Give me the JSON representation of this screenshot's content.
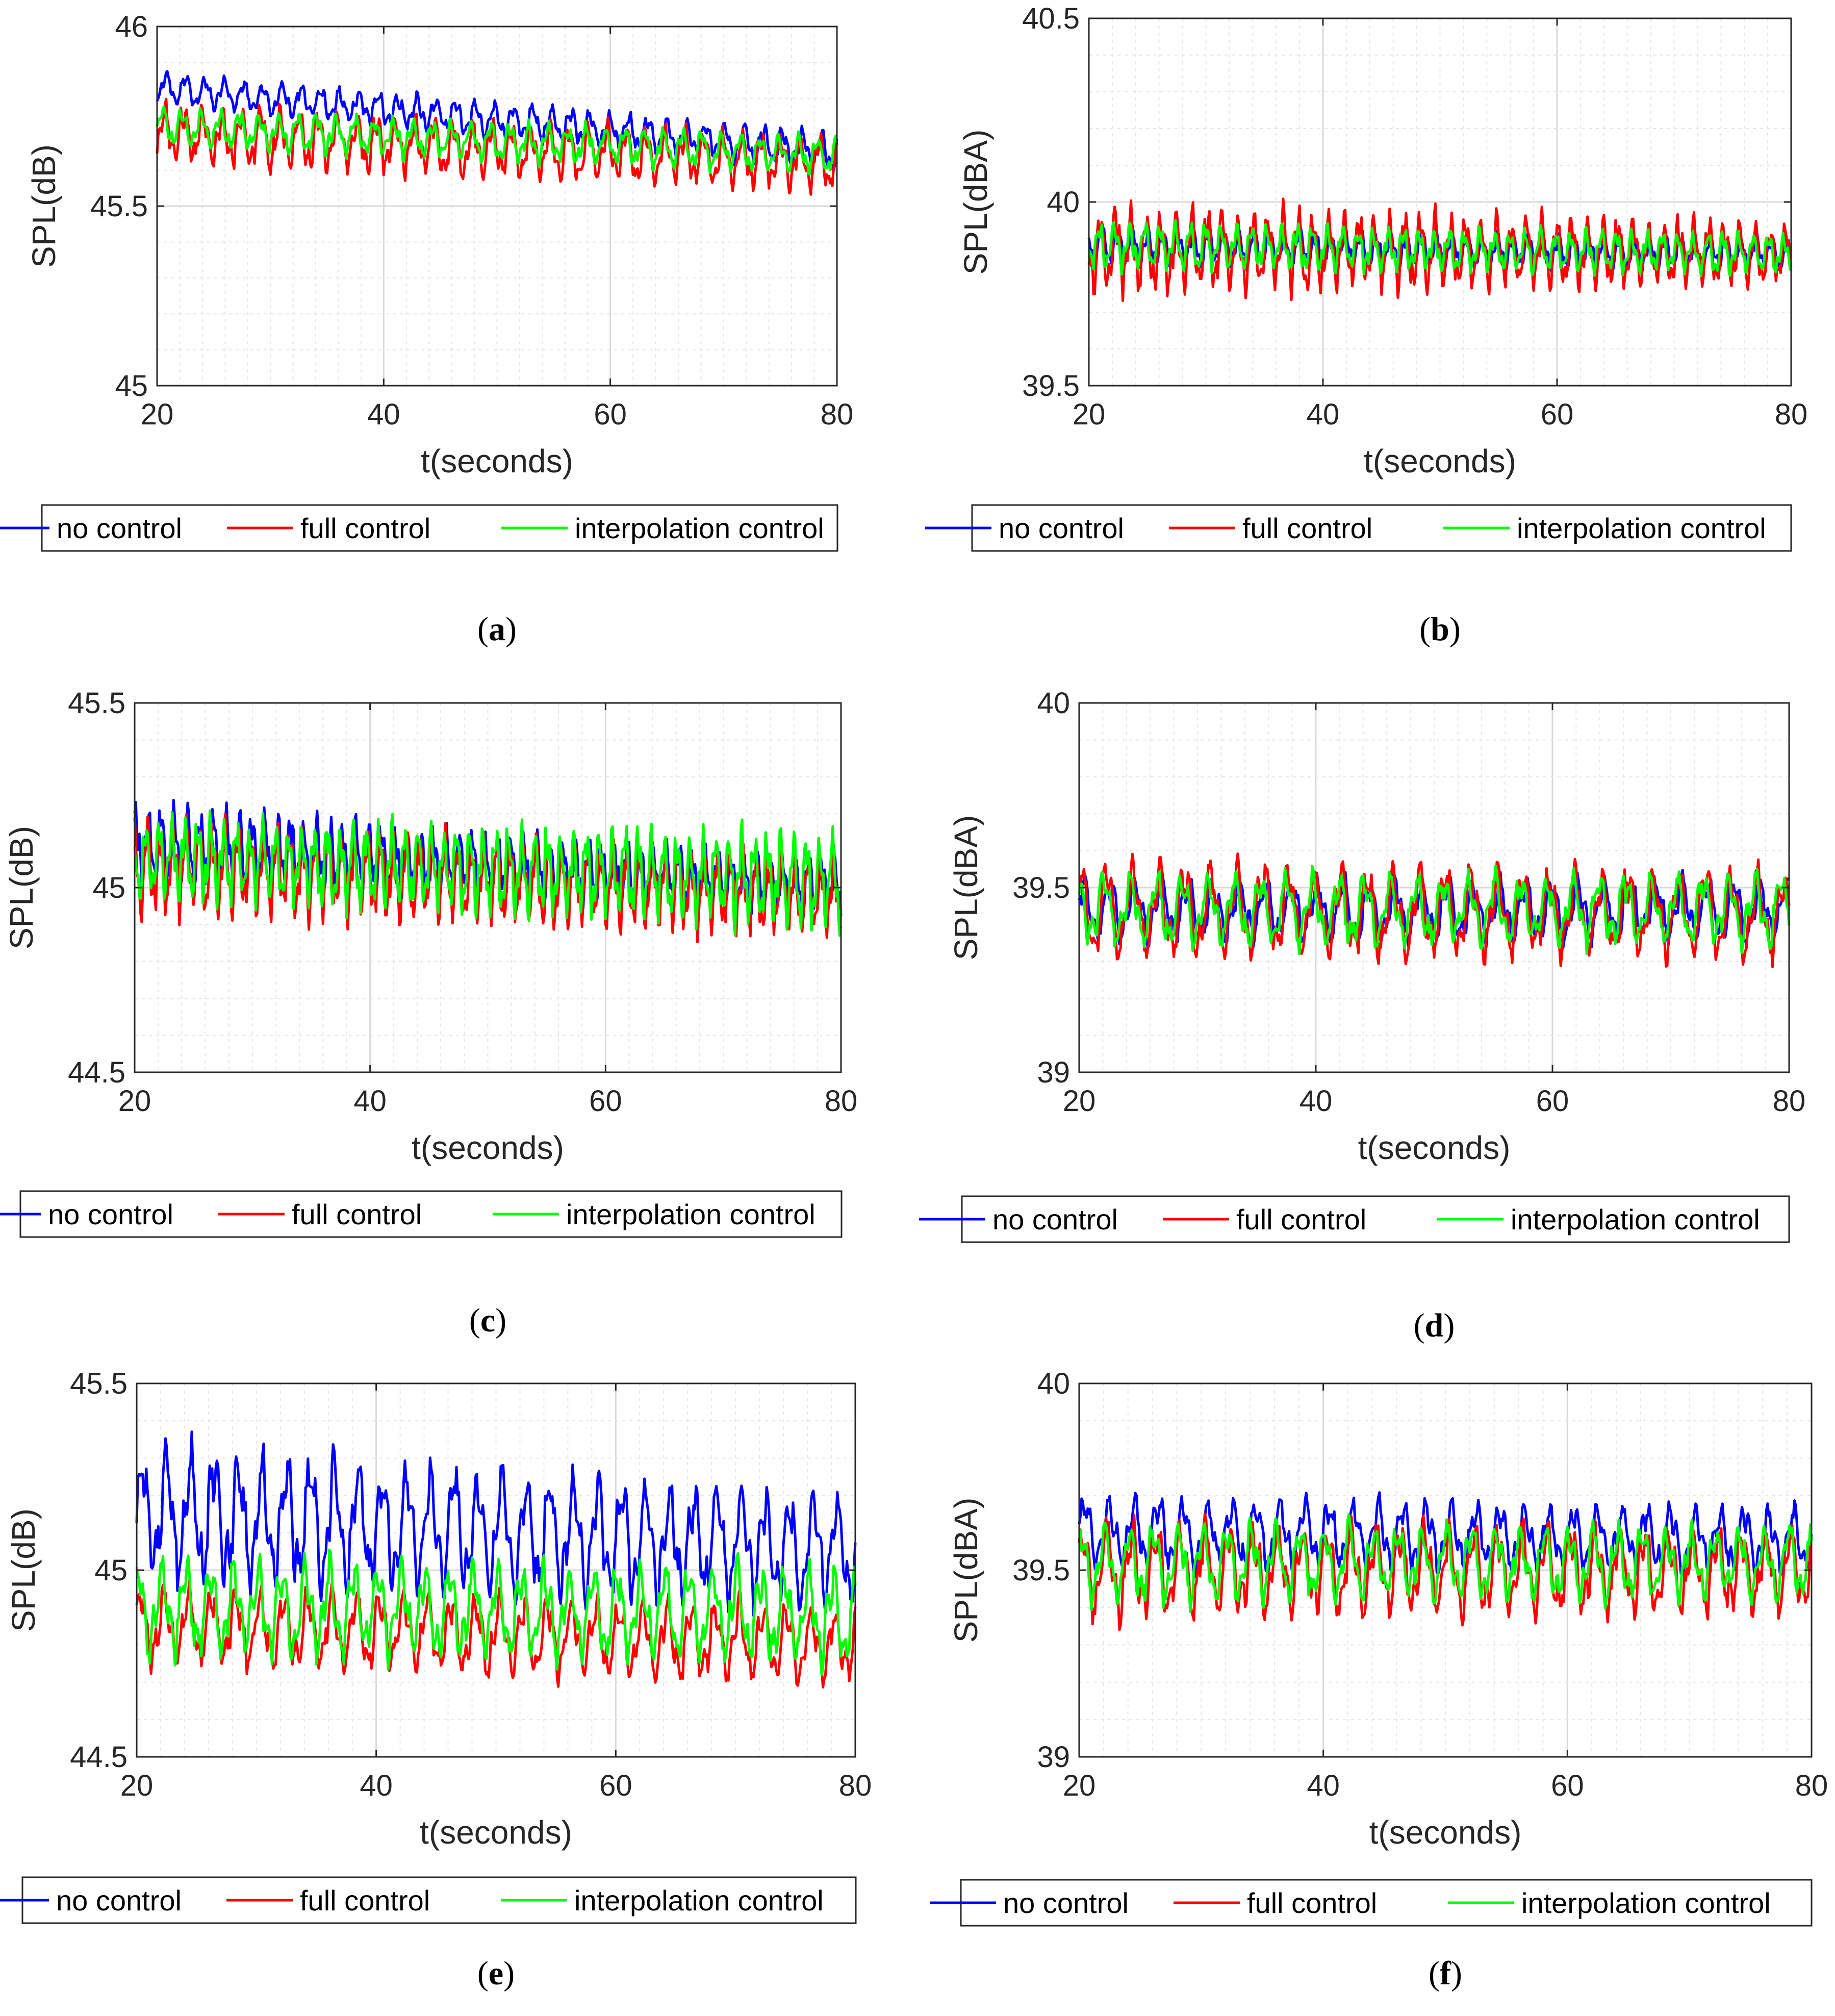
{
  "colors": {
    "no_control": "#0000ff",
    "full_control": "#ff0000",
    "interpolation_control": "#00ff00"
  },
  "legend_labels": [
    "no control",
    "full control",
    "interpolation control"
  ],
  "chart_data": [
    {
      "panel": "a",
      "caption_letter": "a",
      "type": "line",
      "xlabel": "t(seconds)",
      "ylabel": "SPL(dB)",
      "xlim": [
        20,
        80
      ],
      "ylim": [
        45,
        46
      ],
      "xticks": [
        "20",
        "40",
        "60",
        "80"
      ],
      "yticks": [
        "45",
        "45.5",
        "46"
      ],
      "grid": true,
      "legend_position": "below",
      "series": [
        {
          "name": "no control",
          "mean": [
            45.83,
            45.65
          ],
          "amplitude": [
            0.04,
            0.05
          ],
          "period": 1.7
        },
        {
          "name": "full control",
          "mean": [
            45.7,
            45.62
          ],
          "amplitude": [
            0.08,
            0.07
          ],
          "period": 1.7
        },
        {
          "name": "interpolation control",
          "mean": [
            45.72,
            45.64
          ],
          "amplitude": [
            0.05,
            0.05
          ],
          "period": 1.7
        }
      ]
    },
    {
      "panel": "b",
      "caption_letter": "b",
      "type": "line",
      "xlabel": "t(seconds)",
      "ylabel": "SPL(dBA)",
      "xlim": [
        20,
        80
      ],
      "ylim": [
        39.5,
        40.5
      ],
      "xticks": [
        "20",
        "40",
        "60",
        "80"
      ],
      "yticks": [
        "39.5",
        "40",
        "40.5"
      ],
      "grid": true,
      "legend_position": "below",
      "series": [
        {
          "name": "no control",
          "mean": [
            39.88,
            39.86
          ],
          "amplitude": [
            0.05,
            0.04
          ],
          "period": 1.3
        },
        {
          "name": "full control",
          "mean": [
            39.87,
            39.86
          ],
          "amplitude": [
            0.11,
            0.08
          ],
          "period": 1.3
        },
        {
          "name": "interpolation control",
          "mean": [
            39.88,
            39.86
          ],
          "amplitude": [
            0.06,
            0.05
          ],
          "period": 1.3
        }
      ]
    },
    {
      "panel": "c",
      "caption_letter": "c",
      "type": "line",
      "xlabel": "t(seconds)",
      "ylabel": "SPL(dB)",
      "xlim": [
        20,
        80
      ],
      "ylim": [
        44.5,
        45.5
      ],
      "xticks": [
        "20",
        "40",
        "60",
        "80"
      ],
      "yticks": [
        "44.5",
        "45",
        "45.5"
      ],
      "grid": true,
      "legend_position": "below",
      "series": [
        {
          "name": "no control",
          "mean": [
            45.12,
            45.0
          ],
          "amplitude": [
            0.1,
            0.07
          ],
          "period": 1.1
        },
        {
          "name": "full control",
          "mean": [
            45.06,
            44.98
          ],
          "amplitude": [
            0.12,
            0.1
          ],
          "period": 1.1
        },
        {
          "name": "interpolation control",
          "mean": [
            45.08,
            45.02
          ],
          "amplitude": [
            0.1,
            0.12
          ],
          "period": 1.1
        }
      ]
    },
    {
      "panel": "d",
      "caption_letter": "d",
      "type": "line",
      "xlabel": "t(seconds)",
      "ylabel": "SPL(dBA)",
      "xlim": [
        20,
        80
      ],
      "ylim": [
        39,
        40
      ],
      "xticks": [
        "20",
        "40",
        "60",
        "80"
      ],
      "yticks": [
        "39",
        "39.5",
        "40"
      ],
      "grid": true,
      "legend_position": "below",
      "series": [
        {
          "name": "no control",
          "mean": [
            39.44,
            39.44
          ],
          "amplitude": [
            0.08,
            0.08
          ],
          "period": 2.2
        },
        {
          "name": "full control",
          "mean": [
            39.44,
            39.43
          ],
          "amplitude": [
            0.12,
            0.11
          ],
          "period": 2.2
        },
        {
          "name": "interpolation control",
          "mean": [
            39.44,
            39.44
          ],
          "amplitude": [
            0.09,
            0.09
          ],
          "period": 2.2
        }
      ]
    },
    {
      "panel": "e",
      "caption_letter": "e",
      "type": "line",
      "xlabel": "t(seconds)",
      "ylabel": "SPL(dB)",
      "xlim": [
        20,
        80
      ],
      "ylim": [
        44.5,
        45.5
      ],
      "xticks": [
        "20",
        "40",
        "60",
        "80"
      ],
      "yticks": [
        "44.5",
        "45",
        "45.5"
      ],
      "grid": true,
      "legend_position": "below",
      "series": [
        {
          "name": "no control",
          "mean": [
            45.15,
            45.05
          ],
          "amplitude": [
            0.17,
            0.14
          ],
          "period": 2.0
        },
        {
          "name": "full control",
          "mean": [
            44.85,
            44.8
          ],
          "amplitude": [
            0.1,
            0.1
          ],
          "period": 2.0
        },
        {
          "name": "interpolation control",
          "mean": [
            44.9,
            44.88
          ],
          "amplitude": [
            0.12,
            0.12
          ],
          "period": 2.0
        }
      ]
    },
    {
      "panel": "f",
      "caption_letter": "f",
      "type": "line",
      "xlabel": "t(seconds)",
      "ylabel": "SPL(dBA)",
      "xlim": [
        20,
        80
      ],
      "ylim": [
        39,
        40
      ],
      "xticks": [
        "20",
        "40",
        "60",
        "80"
      ],
      "yticks": [
        "39",
        "39.5",
        "40"
      ],
      "grid": true,
      "legend_position": "below",
      "series": [
        {
          "name": "no control",
          "mean": [
            39.6,
            39.58
          ],
          "amplitude": [
            0.09,
            0.08
          ],
          "period": 2.0
        },
        {
          "name": "full control",
          "mean": [
            39.5,
            39.5
          ],
          "amplitude": [
            0.12,
            0.11
          ],
          "period": 2.0
        },
        {
          "name": "interpolation control",
          "mean": [
            39.52,
            39.52
          ],
          "amplitude": [
            0.1,
            0.09
          ],
          "period": 2.0
        }
      ]
    }
  ]
}
